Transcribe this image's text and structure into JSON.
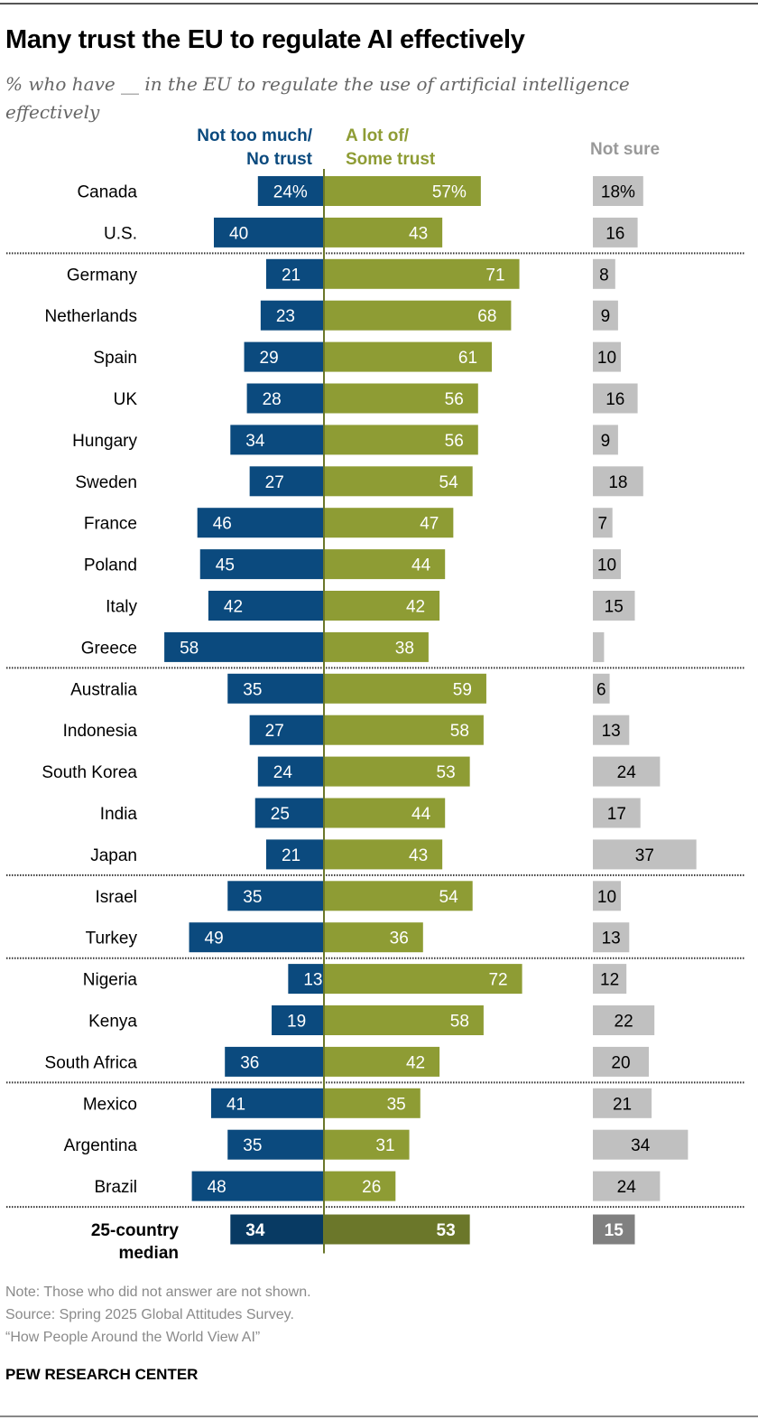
{
  "header": {
    "title": "Many trust the EU to regulate AI effectively",
    "subtitle": "% who have __ in the EU to regulate the use of artificial intelligence effectively"
  },
  "legend": {
    "neg_line1": "Not too much/",
    "neg_line2": "No trust",
    "pos_line1": "A lot of/",
    "pos_line2": "Some trust",
    "not_sure": "Not sure"
  },
  "colors": {
    "neg": "#0b4a7e",
    "pos": "#8e9c34",
    "ns": "#c0c0c0",
    "neg_median": "#083a63",
    "pos_median": "#6b772a",
    "ns_median": "#808080"
  },
  "chart_data": {
    "type": "bar",
    "title": "Many trust the EU to regulate AI effectively",
    "subtitle": "% who have __ in the EU to regulate the use of artificial intelligence effectively",
    "series": [
      {
        "name": "Not too much/No trust",
        "values": [
          24,
          40,
          21,
          23,
          29,
          28,
          34,
          27,
          46,
          45,
          42,
          58,
          35,
          27,
          24,
          25,
          21,
          35,
          49,
          13,
          19,
          36,
          41,
          35,
          48,
          34
        ]
      },
      {
        "name": "A lot of/Some trust",
        "values": [
          57,
          43,
          71,
          68,
          61,
          56,
          56,
          54,
          47,
          44,
          42,
          38,
          59,
          58,
          53,
          44,
          43,
          54,
          36,
          72,
          58,
          42,
          35,
          31,
          26,
          53
        ]
      },
      {
        "name": "Not sure",
        "values": [
          18,
          16,
          8,
          9,
          10,
          16,
          9,
          18,
          7,
          10,
          15,
          4,
          6,
          13,
          24,
          17,
          37,
          10,
          13,
          12,
          22,
          20,
          21,
          34,
          24,
          15
        ]
      }
    ],
    "categories": [
      "Canada",
      "U.S.",
      "Germany",
      "Netherlands",
      "Spain",
      "UK",
      "Hungary",
      "Sweden",
      "France",
      "Poland",
      "Italy",
      "Greece",
      "Australia",
      "Indonesia",
      "South Korea",
      "India",
      "Japan",
      "Israel",
      "Turkey",
      "Nigeria",
      "Kenya",
      "South Africa",
      "Mexico",
      "Argentina",
      "Brazil",
      "25-country median"
    ],
    "value_labels": {
      "neg": [
        "24%",
        "40",
        "21",
        "23",
        "29",
        "28",
        "34",
        "27",
        "46",
        "45",
        "42",
        "58",
        "35",
        "27",
        "24",
        "25",
        "21",
        "35",
        "49",
        "13",
        "19",
        "36",
        "41",
        "35",
        "48",
        "34"
      ],
      "pos": [
        "57%",
        "43",
        "71",
        "68",
        "61",
        "56",
        "56",
        "54",
        "47",
        "44",
        "42",
        "38",
        "59",
        "58",
        "53",
        "44",
        "43",
        "54",
        "36",
        "72",
        "58",
        "42",
        "35",
        "31",
        "26",
        "53"
      ],
      "ns": [
        "18%",
        "16",
        "8",
        "9",
        "10",
        "16",
        "9",
        "18",
        "7",
        "10",
        "15",
        "",
        "6",
        "13",
        "24",
        "17",
        "37",
        "10",
        "13",
        "12",
        "22",
        "20",
        "21",
        "34",
        "24",
        "15"
      ]
    },
    "group_breaks_after": [
      1,
      11,
      16,
      18,
      21,
      24
    ],
    "median_index": 25,
    "xlabel": "",
    "ylabel": ""
  },
  "footer": {
    "note": "Note: Those who did not answer are not shown.",
    "source": "Source: Spring 2025 Global Attitudes Survey.",
    "report": "“How People Around the World View AI”",
    "brand": "PEW RESEARCH CENTER"
  }
}
